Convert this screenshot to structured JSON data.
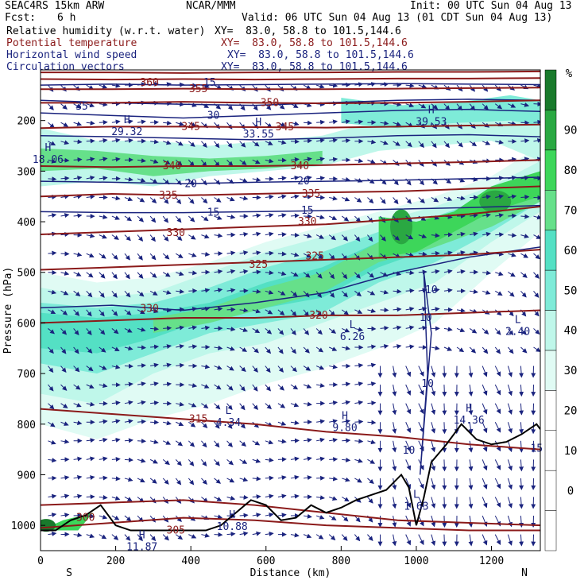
{
  "header": {
    "model": "SEAC4RS 15km ARW",
    "org": "NCAR/MMM",
    "init": "Init: 00 UTC Sun 04 Aug 13",
    "fcst_label": "Fcst:",
    "fcst_value": "6 h",
    "valid": "Valid: 06 UTC Sun 04 Aug 13 (01 CDT Sun 04 Aug 13)"
  },
  "fields": [
    {
      "name": "Relative humidity (w.r.t. water)",
      "xy": "XY=  83.0, 58.8 to 101.5,144.6",
      "color": "#000000"
    },
    {
      "name": "Potential temperature",
      "xy": "XY=  83.0, 58.8 to 101.5,144.6",
      "color": "#8b1a1a"
    },
    {
      "name": "Horizontal wind speed",
      "xy": "XY=  83.0, 58.8 to 101.5,144.6",
      "color": "#1a237e"
    },
    {
      "name": "Circulation vectors",
      "xy": "XY=  83.0, 58.8 to 101.5,144.6",
      "color": "#1a237e"
    }
  ],
  "colors": {
    "theta": "#8b1a1a",
    "wind": "#1a237e",
    "terrain": "#000000",
    "rh_scale": [
      "#ffffff",
      "#ffffff",
      "#ffffff",
      "#ffffff",
      "#e0fbf4",
      "#bff7ea",
      "#7eebd8",
      "#54e0c4",
      "#66e08a",
      "#3dd65a",
      "#2aa842",
      "#197a2c"
    ]
  },
  "chart_data": {
    "type": "heatmap",
    "xlabel": "Distance (km)",
    "ylabel": "Pressure (hPa)",
    "xlim": [
      0,
      1330
    ],
    "ylim": [
      1050,
      100
    ],
    "x_ticks": [
      "0",
      "200",
      "400",
      "600",
      "800",
      "1000",
      "1200"
    ],
    "y_ticks": [
      "200",
      "300",
      "400",
      "500",
      "600",
      "700",
      "800",
      "900",
      "1000"
    ],
    "x_tick_values": [
      0,
      200,
      400,
      600,
      800,
      1000,
      1200
    ],
    "y_tick_values": [
      200,
      300,
      400,
      500,
      600,
      700,
      800,
      900,
      1000
    ],
    "end_labels": {
      "left": "S",
      "right": "N"
    },
    "colorbar": {
      "unit": "%",
      "labels": [
        "0",
        "10",
        "20",
        "30",
        "40",
        "50",
        "60",
        "70",
        "80",
        "90"
      ],
      "values": [
        0,
        10,
        20,
        30,
        40,
        50,
        60,
        70,
        80,
        90
      ]
    },
    "theta_contours": [
      {
        "label": "300",
        "x": 120,
        "p": 985
      },
      {
        "label": "305",
        "x": 360,
        "p": 1010
      },
      {
        "label": "315",
        "x": 420,
        "p": 790
      },
      {
        "label": "320",
        "x": 740,
        "p": 585
      },
      {
        "label": "325",
        "x": 580,
        "p": 485
      },
      {
        "label": "325",
        "x": 730,
        "p": 468
      },
      {
        "label": "330",
        "x": 360,
        "p": 422
      },
      {
        "label": "330",
        "x": 710,
        "p": 400
      },
      {
        "label": "335",
        "x": 340,
        "p": 348
      },
      {
        "label": "335",
        "x": 720,
        "p": 345
      },
      {
        "label": "340",
        "x": 350,
        "p": 290
      },
      {
        "label": "340",
        "x": 690,
        "p": 290
      },
      {
        "label": "345",
        "x": 400,
        "p": 212
      },
      {
        "label": "345",
        "x": 650,
        "p": 213
      },
      {
        "label": "350",
        "x": 610,
        "p": 165
      },
      {
        "label": "355",
        "x": 420,
        "p": 138
      },
      {
        "label": "360",
        "x": 290,
        "p": 125
      },
      {
        "label": "330",
        "x": 290,
        "p": 572
      }
    ],
    "wind_contours": [
      {
        "label": "35",
        "x": 110,
        "p": 172
      },
      {
        "label": "30",
        "x": 460,
        "p": 190
      },
      {
        "label": "20",
        "x": 400,
        "p": 325
      },
      {
        "label": "20",
        "x": 700,
        "p": 320
      },
      {
        "label": "15",
        "x": 460,
        "p": 382
      },
      {
        "label": "15",
        "x": 710,
        "p": 378
      },
      {
        "label": "15",
        "x": 450,
        "p": 125
      },
      {
        "label": "10",
        "x": 1040,
        "p": 535
      },
      {
        "label": "10",
        "x": 1025,
        "p": 590
      },
      {
        "label": "10",
        "x": 1030,
        "p": 720
      },
      {
        "label": "10",
        "x": 980,
        "p": 852
      },
      {
        "label": "15",
        "x": 1320,
        "p": 848
      }
    ],
    "extrema": [
      {
        "type": "H",
        "value": "29.32",
        "x": 230,
        "p": 210
      },
      {
        "type": "H",
        "value": "33.55",
        "x": 580,
        "p": 215
      },
      {
        "type": "H",
        "value": "39.53",
        "x": 1040,
        "p": 190
      },
      {
        "type": "H",
        "value": "18.06",
        "x": 20,
        "p": 265
      },
      {
        "type": "L",
        "value": "6.26",
        "x": 830,
        "p": 615
      },
      {
        "type": "L",
        "value": "2.40",
        "x": 1270,
        "p": 605
      },
      {
        "type": "L",
        "value": "4.34",
        "x": 500,
        "p": 785
      },
      {
        "type": "H",
        "value": "9.80",
        "x": 810,
        "p": 795
      },
      {
        "type": "H",
        "value": "14.36",
        "x": 1140,
        "p": 780
      },
      {
        "type": "H",
        "value": "10.88",
        "x": 510,
        "p": 990
      },
      {
        "type": "H",
        "value": "11.87",
        "x": 270,
        "p": 1030
      },
      {
        "type": "L",
        "value": "1.63",
        "x": 1000,
        "p": 950
      }
    ],
    "terrain": {
      "x": [
        0,
        40,
        80,
        120,
        160,
        200,
        240,
        280,
        320,
        360,
        400,
        440,
        480,
        520,
        560,
        600,
        640,
        680,
        720,
        760,
        800,
        840,
        880,
        920,
        960,
        980,
        1000,
        1020,
        1040,
        1080,
        1120,
        1160,
        1200,
        1240,
        1280,
        1320,
        1330
      ],
      "p": [
        1010,
        1010,
        990,
        980,
        960,
        1000,
        1010,
        1010,
        1010,
        1010,
        1010,
        1010,
        1000,
        975,
        950,
        960,
        990,
        985,
        960,
        975,
        965,
        950,
        940,
        930,
        900,
        925,
        1000,
        945,
        875,
        840,
        800,
        830,
        840,
        835,
        820,
        800,
        810
      ]
    }
  }
}
